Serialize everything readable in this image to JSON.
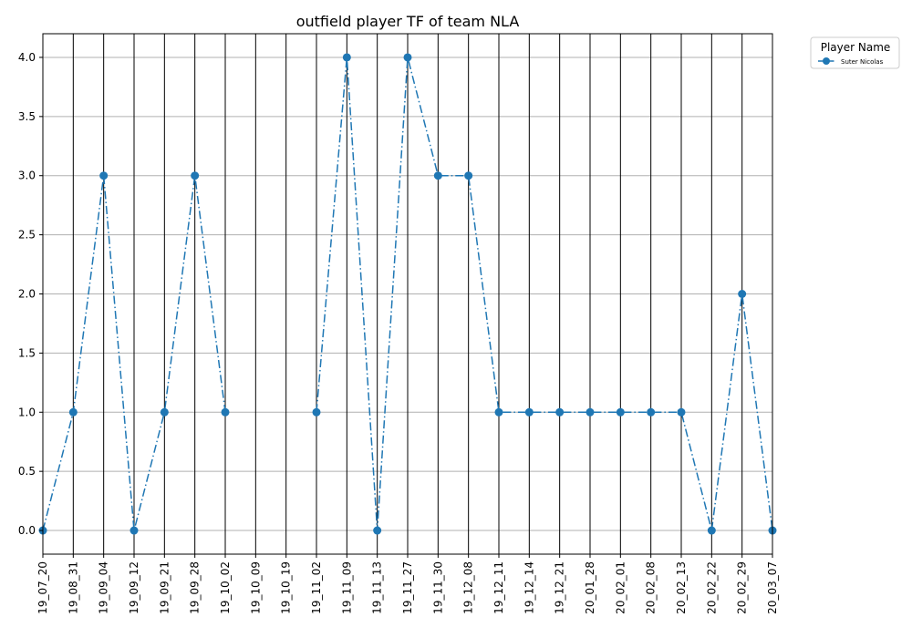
{
  "chart_data": {
    "type": "line",
    "title": "outfield player TF of team NLA",
    "xlabel": "",
    "ylabel": "",
    "ylim": [
      -0.2,
      4.2
    ],
    "yticks": [
      0.0,
      0.5,
      1.0,
      1.5,
      2.0,
      2.5,
      3.0,
      3.5,
      4.0
    ],
    "ytick_labels": [
      "0.0",
      "0.5",
      "1.0",
      "1.5",
      "2.0",
      "2.5",
      "3.0",
      "3.5",
      "4.0"
    ],
    "categories": [
      "19_07_20",
      "19_08_31",
      "19_09_04",
      "19_09_12",
      "19_09_21",
      "19_09_28",
      "19_10_02",
      "19_10_09",
      "19_10_19",
      "19_11_02",
      "19_11_09",
      "19_11_13",
      "19_11_27",
      "19_11_30",
      "19_12_08",
      "19_12_11",
      "19_12_14",
      "19_12_21",
      "20_01_28",
      "20_02_01",
      "20_02_08",
      "20_02_13",
      "20_02_22",
      "20_02_29",
      "20_03_07"
    ],
    "series": [
      {
        "name": "Suter Nicolas",
        "color": "#1f77b4",
        "line_style": "dash-dot",
        "marker": "circle",
        "values": [
          0,
          1,
          3,
          0,
          1,
          3,
          1,
          null,
          null,
          1,
          4,
          0,
          4,
          3,
          3,
          1,
          1,
          1,
          1,
          1,
          1,
          1,
          0,
          2,
          0
        ]
      }
    ],
    "grid": {
      "horizontal": true,
      "vertical": true,
      "vertical_color": "#000000",
      "horizontal_color": "#b0b0b0"
    },
    "legend": {
      "title": "Player Name",
      "placement": "outside-top-right"
    }
  }
}
